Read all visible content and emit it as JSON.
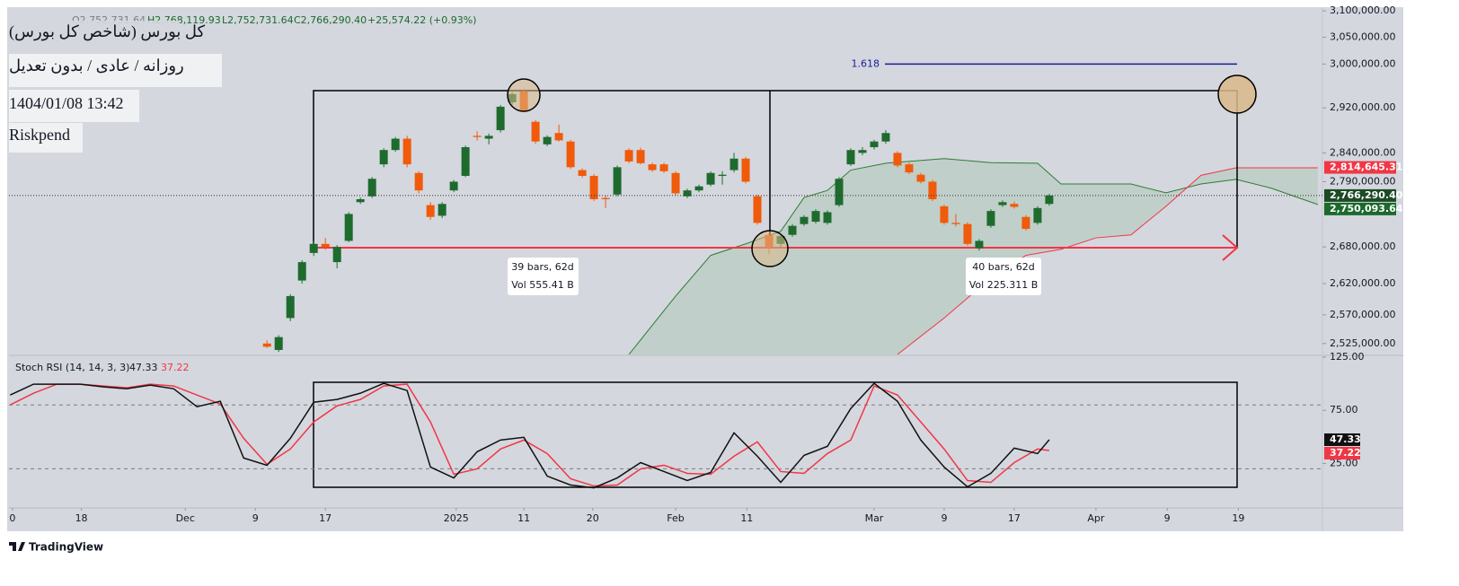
{
  "chart_data": {
    "type": "candlestick",
    "log_scale": true,
    "title_lines": [
      "کل بورس (شاخص کل بورس)",
      "روزانه / عادی / بدون تعدیل",
      "1404/01/08 13:42",
      "Riskpend"
    ],
    "ohlc_header": [
      "O2,752,731.64",
      "H2,768,119.93",
      "L2,752,731.64",
      "C2,766,290.40",
      "+25,574.22 (+0.93%)"
    ],
    "up_color": "#1e6b2e",
    "down_color": "#f05a0a",
    "ohlc": [
      [
        2525000,
        2530000,
        2518000,
        2520000
      ],
      [
        2515000,
        2538000,
        2512000,
        2535000
      ],
      [
        2565000,
        2603000,
        2560000,
        2600000
      ],
      [
        2625000,
        2658000,
        2620000,
        2655000
      ],
      [
        2670000,
        2690000,
        2665000,
        2685000
      ],
      [
        2685000,
        2695000,
        2675000,
        2680000
      ],
      [
        2655000,
        2683000,
        2645000,
        2680000
      ],
      [
        2690000,
        2738000,
        2688000,
        2735000
      ],
      [
        2755000,
        2763000,
        2752000,
        2760000
      ],
      [
        2765000,
        2798000,
        2762000,
        2795000
      ],
      [
        2820000,
        2848000,
        2815000,
        2845000
      ],
      [
        2845000,
        2868000,
        2842000,
        2865000
      ],
      [
        2865000,
        2870000,
        2815000,
        2820000
      ],
      [
        2805000,
        2808000,
        2770000,
        2775000
      ],
      [
        2750000,
        2755000,
        2725000,
        2730000
      ],
      [
        2732000,
        2755000,
        2728000,
        2752000
      ],
      [
        2775000,
        2793000,
        2772000,
        2790000
      ],
      [
        2800000,
        2853000,
        2798000,
        2850000
      ],
      [
        2870000,
        2878000,
        2862000,
        2868000
      ],
      [
        2865000,
        2874000,
        2855000,
        2870000
      ],
      [
        2880000,
        2925000,
        2876000,
        2922000
      ],
      [
        2930000,
        2948000,
        2926000,
        2945000
      ],
      [
        2950000,
        2955000,
        2912000,
        2915000
      ],
      [
        2895000,
        2898000,
        2856000,
        2860000
      ],
      [
        2855000,
        2871000,
        2852000,
        2868000
      ],
      [
        2875000,
        2890000,
        2860000,
        2862000
      ],
      [
        2860000,
        2863000,
        2812000,
        2815000
      ],
      [
        2810000,
        2813000,
        2797000,
        2800000
      ],
      [
        2800000,
        2803000,
        2757000,
        2760000
      ],
      [
        2762000,
        2766000,
        2745000,
        2760000
      ],
      [
        2768000,
        2818000,
        2765000,
        2815000
      ],
      [
        2845000,
        2848000,
        2822000,
        2825000
      ],
      [
        2845000,
        2849000,
        2820000,
        2822000
      ],
      [
        2820000,
        2823000,
        2807000,
        2810000
      ],
      [
        2820000,
        2823000,
        2805000,
        2808000
      ],
      [
        2805000,
        2808000,
        2767000,
        2770000
      ],
      [
        2765000,
        2778000,
        2762000,
        2775000
      ],
      [
        2775000,
        2785000,
        2772000,
        2782000
      ],
      [
        2785000,
        2808000,
        2782000,
        2805000
      ],
      [
        2800000,
        2808000,
        2785000,
        2802000
      ],
      [
        2810000,
        2840000,
        2806000,
        2830000
      ],
      [
        2830000,
        2833000,
        2787000,
        2790000
      ],
      [
        2765000,
        2768000,
        2717000,
        2720000
      ],
      [
        2700000,
        2703000,
        2668000,
        2680000
      ],
      [
        2685000,
        2700000,
        2680000,
        2698000
      ],
      [
        2700000,
        2718000,
        2697000,
        2715000
      ],
      [
        2718000,
        2733000,
        2715000,
        2730000
      ],
      [
        2722000,
        2743000,
        2719000,
        2740000
      ],
      [
        2720000,
        2741000,
        2717000,
        2738000
      ],
      [
        2750000,
        2798000,
        2747000,
        2795000
      ],
      [
        2820000,
        2848000,
        2817000,
        2845000
      ],
      [
        2840000,
        2850000,
        2836000,
        2845000
      ],
      [
        2850000,
        2863000,
        2846000,
        2860000
      ],
      [
        2860000,
        2880000,
        2856000,
        2875000
      ],
      [
        2840000,
        2843000,
        2815000,
        2818000
      ],
      [
        2820000,
        2823000,
        2803000,
        2806000
      ],
      [
        2802000,
        2805000,
        2787000,
        2790000
      ],
      [
        2790000,
        2793000,
        2757000,
        2760000
      ],
      [
        2748000,
        2751000,
        2717000,
        2720000
      ],
      [
        2720000,
        2735000,
        2714000,
        2718000
      ],
      [
        2718000,
        2721000,
        2682000,
        2685000
      ],
      [
        2678000,
        2693000,
        2674000,
        2690000
      ],
      [
        2715000,
        2743000,
        2712000,
        2740000
      ],
      [
        2750000,
        2758000,
        2747000,
        2755000
      ],
      [
        2752000,
        2756000,
        2744000,
        2747000
      ],
      [
        2730000,
        2733000,
        2707000,
        2710000
      ],
      [
        2720000,
        2748000,
        2717000,
        2745000
      ],
      [
        2752000,
        2769000,
        2749000,
        2766290.4
      ]
    ],
    "cloud": [
      {
        "color": "#2e7d32",
        "x": [
          31,
          35,
          38,
          41,
          44,
          46,
          48,
          50,
          53,
          58,
          62,
          66,
          68,
          74,
          77,
          80,
          83,
          86,
          90
        ],
        "values": [
          2508000,
          2600000,
          2666000,
          2685000,
          2706000,
          2763000,
          2775000,
          2810000,
          2822000,
          2830000,
          2823000,
          2822000,
          2786000,
          2786000,
          2771000,
          2786000,
          2794000,
          2779000,
          2751000
        ]
      },
      {
        "color": "#f23645",
        "x": [
          54,
          58,
          62,
          65,
          68,
          71,
          74,
          77,
          80,
          83,
          86,
          90
        ],
        "values": [
          2508000,
          2565000,
          2629000,
          2666000,
          2676000,
          2695000,
          2700000,
          2748000,
          2801000,
          2814000,
          2814000,
          2814000
        ]
      }
    ],
    "fib": {
      "ratio": 1.618,
      "value": 3000000,
      "color": "#1a1a9c"
    },
    "price_labels": [
      {
        "value": 2814645.31,
        "label": "2,814,645.31",
        "color": "#f23645"
      },
      {
        "value": 2766290.4,
        "label": "2,766,290.40",
        "color": "#1d4a26"
      },
      {
        "value": 2750093.64,
        "label": "2,750,093.64",
        "color": "#1b6a2c"
      }
    ],
    "measure_labels": [
      [
        "39 bars, 62d",
        "Vol 555.41 B"
      ],
      [
        "40 bars, 62d",
        "Vol 225.311 B"
      ]
    ],
    "xlim": [
      -22.1,
      90.4
    ],
    "ylim": [
      2508000,
      3107000
    ],
    "yticks": [
      {
        "value": 3100000,
        "label": "3,100,000.00"
      },
      {
        "value": 3050000,
        "label": "3,050,000.00"
      },
      {
        "value": 3000000,
        "label": "3,000,000.00"
      },
      {
        "value": 2920000,
        "label": "2,920,000.00"
      },
      {
        "value": 2840000,
        "label": "2,840,000.00"
      },
      {
        "value": 2790000,
        "label": "2,790,000.00"
      },
      {
        "value": 2680000,
        "label": "2,680,000.00"
      },
      {
        "value": 2620000,
        "label": "2,620,000.00"
      },
      {
        "value": 2570000,
        "label": "2,570,000.00"
      },
      {
        "value": 2525000,
        "label": "2,525,000.00"
      }
    ],
    "xticks": [
      {
        "value": -21.8,
        "label": "0"
      },
      {
        "value": -15.9,
        "label": "18"
      },
      {
        "value": -7.0,
        "label": "Dec"
      },
      {
        "value": -1.0,
        "label": "9"
      },
      {
        "value": 5.0,
        "label": "17"
      },
      {
        "value": 16.2,
        "label": "2025"
      },
      {
        "value": 22.0,
        "label": "11"
      },
      {
        "value": 27.9,
        "label": "20"
      },
      {
        "value": 35.0,
        "label": "Feb"
      },
      {
        "value": 41.1,
        "label": "11"
      },
      {
        "value": 52.0,
        "label": "Mar"
      },
      {
        "value": 58.0,
        "label": "9"
      },
      {
        "value": 64.0,
        "label": "17"
      },
      {
        "value": 71.0,
        "label": "Apr"
      },
      {
        "value": 77.1,
        "label": "9"
      },
      {
        "value": 83.2,
        "label": "19"
      }
    ],
    "oscillator": {
      "title": "Stoch RSI (14, 14, 3, 3)",
      "ylim": [
        -16,
        125
      ],
      "yticks": [
        {
          "value": 125,
          "label": "125.00"
        },
        {
          "value": 75,
          "label": "75.00"
        },
        {
          "value": 25,
          "label": "25.00"
        }
      ],
      "bands": [
        80,
        20
      ],
      "x": [
        -22,
        -20,
        -18,
        -16,
        -14,
        -12,
        -10,
        -8,
        -6,
        -4,
        -2,
        0,
        2,
        4,
        6,
        8,
        10,
        12,
        14,
        16,
        18,
        20,
        22,
        24,
        26,
        28,
        30,
        32,
        34,
        36,
        38,
        40,
        42,
        44,
        46,
        48,
        50,
        52,
        54,
        56,
        58,
        60,
        62,
        64,
        66,
        67
      ],
      "series": [
        {
          "color": "#111111",
          "values": [
            89.4,
            99.6,
            99.6,
            99.6,
            97.0,
            95.3,
            98.7,
            95.3,
            78.4,
            83.5,
            30.1,
            23.3,
            48.7,
            82.6,
            85.2,
            91.1,
            100.4,
            93.6,
            21.6,
            11.4,
            36.0,
            47.0,
            49.6,
            13.1,
            4.7,
            2.1,
            11.4,
            25.8,
            17.4,
            8.9,
            16.5,
            53.8,
            31.8,
            7.2,
            32.6,
            41.1,
            76.7,
            100.4,
            83.5,
            47.0,
            21.6,
            3.0,
            15.7,
            39.4,
            34.3,
            47.33
          ]
        },
        {
          "color": "#f23645",
          "values": [
            80.1,
            91.1,
            99.6,
            99.6,
            97.9,
            96.2,
            99.6,
            97.9,
            89.4,
            80.9,
            48.7,
            24.2,
            38.6,
            64.0,
            79.2,
            85.2,
            97.9,
            99.6,
            64.0,
            14.8,
            19.9,
            38.6,
            47.0,
            34.3,
            10.6,
            3.8,
            4.7,
            19.9,
            23.3,
            15.7,
            14.8,
            31.8,
            45.3,
            17.4,
            15.7,
            34.3,
            47.0,
            97.9,
            89.4,
            64.0,
            38.6,
            8.9,
            7.2,
            25.8,
            38.6,
            37.22
          ]
        }
      ]
    },
    "watermark": "TradingView"
  }
}
